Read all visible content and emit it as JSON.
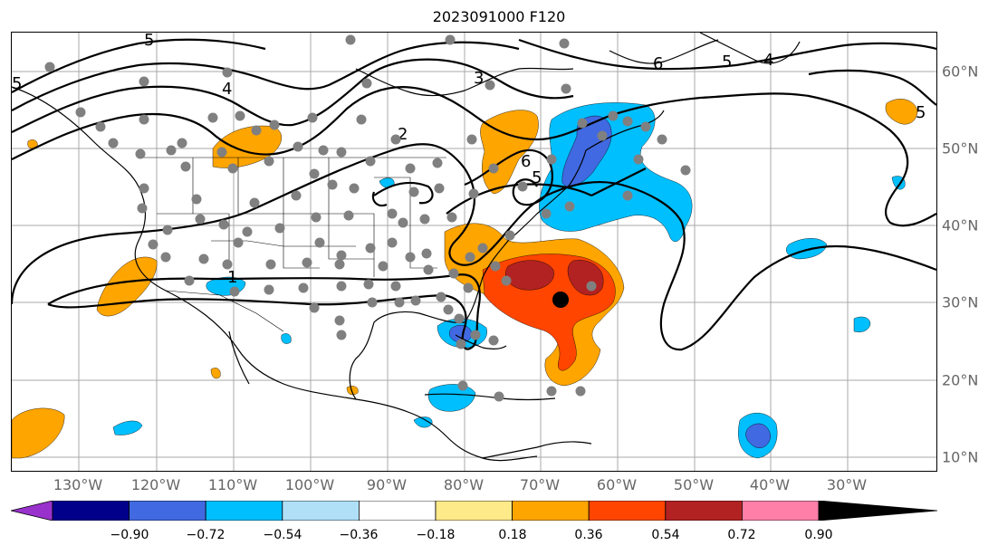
{
  "title": "2023091000 F120",
  "lon_labels": [
    "130°W",
    "120°W",
    "110°W",
    "100°W",
    "90°W",
    "80°W",
    "70°W",
    "60°W",
    "50°W",
    "40°W",
    "30°W"
  ],
  "lat_labels": [
    "60°N",
    "50°N",
    "40°N",
    "30°N",
    "20°N",
    "10°N"
  ],
  "contour_labels": [
    "5",
    "6",
    "5",
    "4",
    "5",
    "4",
    "3",
    "2",
    "1",
    "5",
    "6",
    "5"
  ],
  "colorbar": {
    "ticks": [
      "−0.90",
      "−0.72",
      "−0.54",
      "−0.36",
      "−0.18",
      "0.18",
      "0.36",
      "0.54",
      "0.72",
      "0.90"
    ],
    "colors": [
      "#9932cc",
      "#00008b",
      "#4169e1",
      "#00bfff",
      "#b0e0f8",
      "#ffffff",
      "#ffea8a",
      "#ffa500",
      "#ff4500",
      "#b22222",
      "#ff7fa8"
    ]
  },
  "colors": {
    "orange": "#ffa500",
    "red_orange": "#ff4500",
    "dark_red": "#b22222",
    "deep_sky_blue": "#00bfff",
    "royal_blue": "#4169e1",
    "station_gray": "#808080"
  }
}
